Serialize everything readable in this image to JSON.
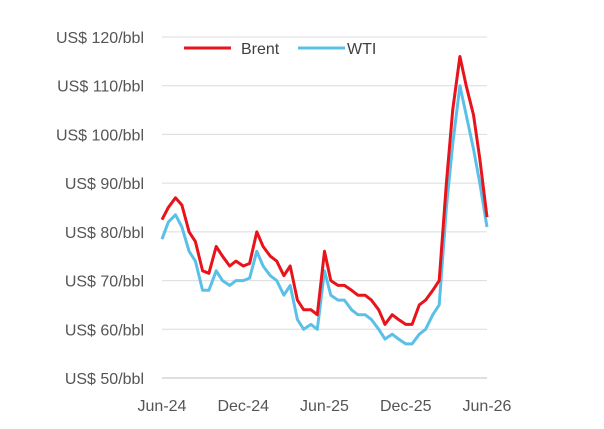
{
  "chart_data": {
    "type": "line",
    "title": "",
    "xlabel": "",
    "ylabel": "",
    "ylim": [
      50,
      120
    ],
    "xlim": [
      "2024-06",
      "2026-06"
    ],
    "y_ticks": [
      50,
      60,
      70,
      80,
      90,
      100,
      110,
      120
    ],
    "y_tick_labels": [
      "US$ 50/bbl",
      "US$ 60/bbl",
      "US$ 70/bbl",
      "US$ 80/bbl",
      "US$ 90/bbl",
      "US$ 100/bbl",
      "US$ 110/bbl",
      "US$ 120/bbl"
    ],
    "x_ticks": [
      "2024-06",
      "2024-12",
      "2025-06",
      "2025-12",
      "2026-06"
    ],
    "x_tick_labels": [
      "Jun-24",
      "Dec-24",
      "Jun-25",
      "Dec-25",
      "Jun-26"
    ],
    "grid": "horizontal",
    "legend": "top",
    "x": [
      "2024-06",
      "2024-06-15",
      "2024-07",
      "2024-07-15",
      "2024-08",
      "2024-08-15",
      "2024-09",
      "2024-09-15",
      "2024-10",
      "2024-10-15",
      "2024-11",
      "2024-11-15",
      "2024-12",
      "2024-12-15",
      "2025-01",
      "2025-01-15",
      "2025-02",
      "2025-02-15",
      "2025-03",
      "2025-03-15",
      "2025-04",
      "2025-04-15",
      "2025-05",
      "2025-05-15",
      "2025-06",
      "2025-06-15",
      "2025-07",
      "2025-07-15",
      "2025-08",
      "2025-08-15",
      "2025-09",
      "2025-09-15",
      "2025-10",
      "2025-10-15",
      "2025-11",
      "2025-11-15",
      "2025-12",
      "2025-12-15",
      "2026-01",
      "2026-01-15",
      "2026-02",
      "2026-02-15",
      "2026-03",
      "2026-03-15",
      "2026-04",
      "2026-04-15",
      "2026-05",
      "2026-05-15",
      "2026-06"
    ],
    "series": [
      {
        "name": "Brent",
        "color": "#e8141b",
        "values": [
          82.5,
          85,
          87,
          85.5,
          80,
          78,
          72,
          71.5,
          77,
          75,
          73,
          74,
          73,
          73.5,
          80,
          77,
          75,
          74,
          71,
          73,
          66,
          64,
          64,
          63,
          76,
          70,
          69,
          69,
          68,
          67,
          67,
          66,
          64,
          61,
          63,
          62,
          61,
          61,
          65,
          66,
          68,
          70,
          90,
          105,
          116,
          110,
          104,
          95,
          83
        ]
      },
      {
        "name": "WTI",
        "color": "#5bc0e8",
        "values": [
          78.5,
          82,
          83.5,
          81,
          76,
          74,
          68,
          68,
          72,
          70,
          69,
          70,
          70,
          70.5,
          76,
          73,
          71,
          70,
          67,
          69,
          62,
          60,
          61,
          60,
          72,
          67,
          66,
          66,
          64,
          63,
          63,
          62,
          60,
          58,
          59,
          58,
          57,
          57,
          59,
          60,
          63,
          65,
          85,
          98,
          110,
          104,
          97,
          90,
          81
        ]
      }
    ]
  }
}
